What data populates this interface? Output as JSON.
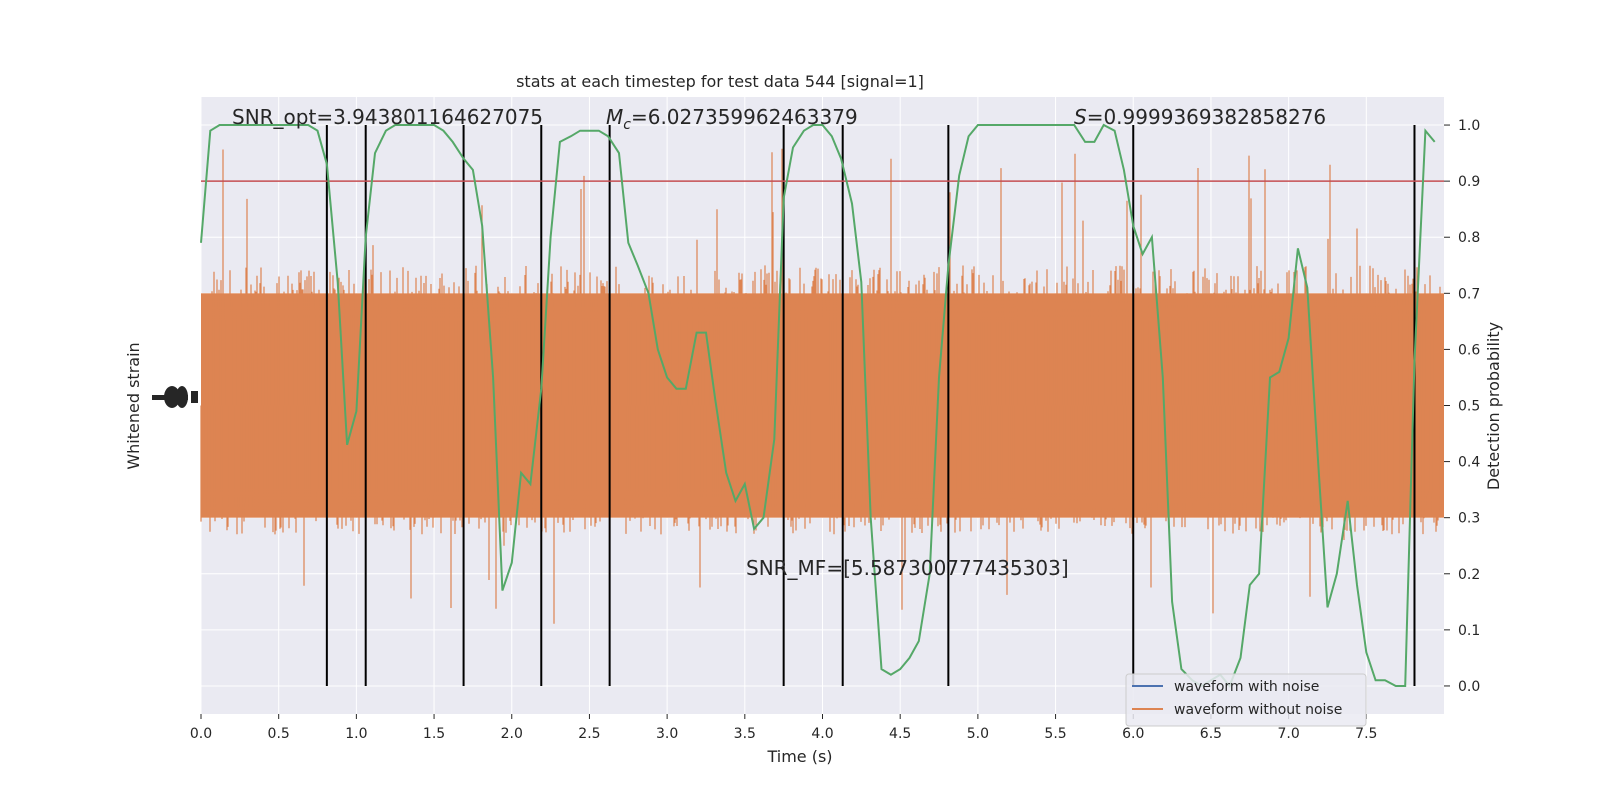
{
  "chart_data": {
    "type": "line",
    "title": "stats at each timestep for test data 544 [signal=1]",
    "xlabel": "Time (s)",
    "ylabel_left": "Whitened strain",
    "ylabel_right": "Detection probability",
    "xlim": [
      0,
      8
    ],
    "ylim_right": [
      -0.05,
      1.05
    ],
    "x_ticks": [
      0.0,
      0.5,
      1.0,
      1.5,
      2.0,
      2.5,
      3.0,
      3.5,
      4.0,
      4.5,
      5.0,
      5.5,
      6.0,
      6.5,
      7.0,
      7.5
    ],
    "x_tick_labels": [
      "0.0",
      "0.5",
      "1.0",
      "1.5",
      "2.0",
      "2.5",
      "3.0",
      "3.5",
      "4.0",
      "4.5",
      "5.0",
      "5.5",
      "6.0",
      "6.5",
      "7.0",
      "7.5"
    ],
    "y_right_ticks": [
      0.0,
      0.1,
      0.2,
      0.3,
      0.4,
      0.5,
      0.6,
      0.7,
      0.8,
      0.9,
      1.0
    ],
    "y_right_tick_labels": [
      "0.0",
      "0.1",
      "0.2",
      "0.3",
      "0.4",
      "0.5",
      "0.6",
      "0.7",
      "0.8",
      "0.9",
      "1.0"
    ],
    "grid": true,
    "legend_position": "bottom-right",
    "annotations": {
      "snr_opt": "SNR_opt=3.943801164627075",
      "mc_symbol": "M",
      "mc_sub": "c",
      "mc_value": "=6.027359962463379",
      "s_symbol": "S",
      "s_value": "=0.9999369382858276",
      "snr_mf": "SNR_MF=[5.587300777435303]"
    },
    "threshold": {
      "value": 0.9,
      "color": "#c44e52"
    },
    "vertical_lines_x": [
      0.81,
      1.06,
      1.69,
      2.19,
      2.63,
      3.75,
      4.13,
      4.81,
      6.0,
      7.81
    ],
    "series": [
      {
        "name": "waveform with noise",
        "color": "#4c72b0"
      },
      {
        "name": "waveform without noise",
        "color": "#dd8452"
      },
      {
        "color": "#55a868",
        "x": [
          0.0,
          0.06,
          0.12,
          0.19,
          0.25,
          0.31,
          0.38,
          0.44,
          0.5,
          0.56,
          0.62,
          0.69,
          0.75,
          0.81,
          0.88,
          0.94,
          1.0,
          1.06,
          1.12,
          1.19,
          1.25,
          1.31,
          1.38,
          1.44,
          1.5,
          1.56,
          1.62,
          1.69,
          1.75,
          1.81,
          1.88,
          1.94,
          2.0,
          2.06,
          2.12,
          2.19,
          2.25,
          2.31,
          2.38,
          2.44,
          2.5,
          2.56,
          2.62,
          2.69,
          2.75,
          2.81,
          2.88,
          2.94,
          3.0,
          3.06,
          3.12,
          3.19,
          3.25,
          3.31,
          3.38,
          3.44,
          3.5,
          3.56,
          3.62,
          3.69,
          3.75,
          3.81,
          3.88,
          3.94,
          4.0,
          4.06,
          4.12,
          4.19,
          4.25,
          4.31,
          4.38,
          4.44,
          4.5,
          4.56,
          4.62,
          4.69,
          4.75,
          4.81,
          4.88,
          4.94,
          5.0,
          5.06,
          5.12,
          5.19,
          5.25,
          5.31,
          5.38,
          5.44,
          5.5,
          5.56,
          5.62,
          5.69,
          5.75,
          5.81,
          5.88,
          5.94,
          6.0,
          6.06,
          6.12,
          6.19,
          6.25,
          6.31,
          6.38,
          6.44,
          6.5,
          6.56,
          6.62,
          6.69,
          6.75,
          6.81,
          6.88,
          6.94,
          7.0,
          7.06,
          7.12,
          7.19,
          7.25,
          7.31,
          7.38,
          7.44,
          7.5,
          7.56,
          7.62,
          7.69,
          7.75,
          7.81,
          7.88,
          7.94
        ],
        "values": [
          0.79,
          0.99,
          1.0,
          1.0,
          1.0,
          1.0,
          1.0,
          1.0,
          1.0,
          1.0,
          1.0,
          1.0,
          0.99,
          0.93,
          0.72,
          0.43,
          0.49,
          0.8,
          0.95,
          0.99,
          1.0,
          1.0,
          1.0,
          1.0,
          1.0,
          0.99,
          0.97,
          0.94,
          0.92,
          0.82,
          0.55,
          0.17,
          0.22,
          0.38,
          0.36,
          0.53,
          0.8,
          0.97,
          0.98,
          0.99,
          0.99,
          0.99,
          0.98,
          0.95,
          0.79,
          0.75,
          0.7,
          0.6,
          0.55,
          0.53,
          0.53,
          0.63,
          0.63,
          0.51,
          0.38,
          0.33,
          0.36,
          0.28,
          0.3,
          0.44,
          0.87,
          0.96,
          0.99,
          1.0,
          1.0,
          0.98,
          0.94,
          0.86,
          0.72,
          0.3,
          0.03,
          0.02,
          0.03,
          0.05,
          0.08,
          0.2,
          0.55,
          0.75,
          0.91,
          0.98,
          1.0,
          1.0,
          1.0,
          1.0,
          1.0,
          1.0,
          1.0,
          1.0,
          1.0,
          1.0,
          1.0,
          0.97,
          0.97,
          1.0,
          0.99,
          0.92,
          0.82,
          0.77,
          0.8,
          0.55,
          0.15,
          0.03,
          0.01,
          0.0,
          0.01,
          0.02,
          0.0,
          0.05,
          0.18,
          0.2,
          0.55,
          0.56,
          0.62,
          0.78,
          0.71,
          0.4,
          0.14,
          0.2,
          0.33,
          0.18,
          0.06,
          0.01,
          0.01,
          0.0,
          0.0,
          0.58,
          0.99,
          0.97
        ]
      }
    ]
  }
}
